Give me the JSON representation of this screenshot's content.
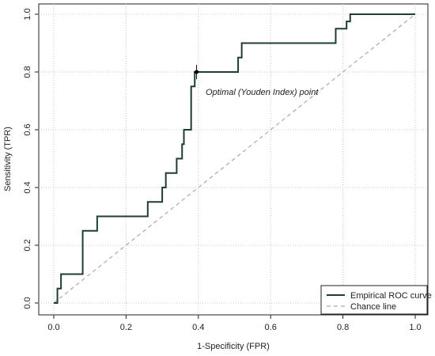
{
  "chart_data": {
    "type": "line",
    "xlabel": "1-Specificity (FPR)",
    "ylabel": "Sensitivity (TPR)",
    "xlim": [
      0,
      1
    ],
    "ylim": [
      0,
      1
    ],
    "x_ticks": [
      "0.0",
      "0.2",
      "0.4",
      "0.6",
      "0.8",
      "1.0"
    ],
    "y_ticks": [
      "0.0",
      "0.2",
      "0.4",
      "0.6",
      "0.8",
      "1.0"
    ],
    "grid": true,
    "legend_position": "bottom-right",
    "series": [
      {
        "name": "Empirical ROC curve",
        "color": "#1f3d33",
        "style": "solid",
        "step": true,
        "x": [
          0.0,
          0.01,
          0.01,
          0.02,
          0.02,
          0.08,
          0.08,
          0.12,
          0.12,
          0.26,
          0.26,
          0.3,
          0.3,
          0.31,
          0.31,
          0.34,
          0.34,
          0.355,
          0.355,
          0.36,
          0.36,
          0.38,
          0.38,
          0.39,
          0.39,
          0.51,
          0.51,
          0.52,
          0.52,
          0.78,
          0.78,
          0.81,
          0.81,
          0.82,
          0.82,
          1.0
        ],
        "y": [
          0.0,
          0.0,
          0.05,
          0.05,
          0.1,
          0.1,
          0.25,
          0.25,
          0.3,
          0.3,
          0.35,
          0.35,
          0.4,
          0.4,
          0.45,
          0.45,
          0.5,
          0.5,
          0.55,
          0.55,
          0.6,
          0.6,
          0.75,
          0.75,
          0.8,
          0.8,
          0.85,
          0.85,
          0.9,
          0.9,
          0.95,
          0.95,
          0.975,
          0.975,
          1.0,
          1.0
        ]
      },
      {
        "name": "Chance line",
        "color": "#aaaaaa",
        "style": "dashed",
        "x": [
          0,
          1
        ],
        "y": [
          0,
          1
        ]
      }
    ],
    "optimal_point": {
      "x": 0.395,
      "y": 0.8,
      "error_bar": [
        0.775,
        0.825
      ]
    },
    "annotation": {
      "text": "Optimal (Youden Index) point",
      "x": 0.42,
      "y": 0.72
    }
  }
}
